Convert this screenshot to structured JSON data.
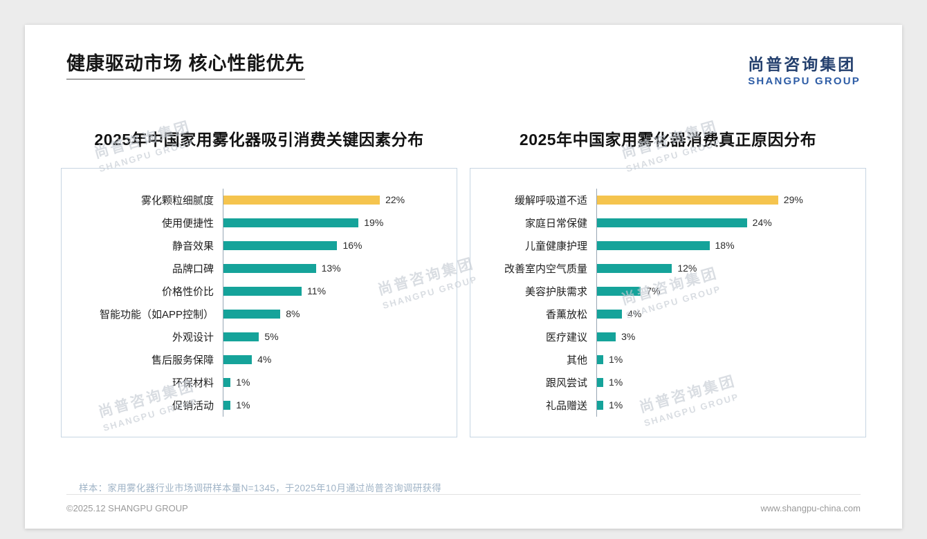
{
  "page": {
    "title": "健康驱动市场 核心性能优先",
    "logo": {
      "cn": "尚普咨询集团",
      "en": "SHANGPU GROUP"
    },
    "watermark": {
      "cn": "尚普咨询集团",
      "en": "SHANGPU GROUP"
    },
    "sample_note": "样本：家用雾化器行业市场调研样本量N=1345，于2025年10月通过尚普咨询调研获得",
    "footer": {
      "left": "©2025.12 SHANGPU GROUP",
      "right": "www.shangpu-china.com"
    }
  },
  "colors": {
    "accent_teal": "#15A39A",
    "accent_yellow": "#F5C44E",
    "logo_navy": "#24406E",
    "logo_blue": "#2E5DA6",
    "chart_border": "#C7D5E2",
    "note_text": "#9FB3C6"
  },
  "chart_data": [
    {
      "type": "bar",
      "orientation": "horizontal",
      "title": "2025年中国家用雾化器吸引消费关键因素分布",
      "categories": [
        "雾化颗粒细腻度",
        "使用便捷性",
        "静音效果",
        "品牌口碑",
        "价格性价比",
        "智能功能（如APP控制）",
        "外观设计",
        "售后服务保障",
        "环保材料",
        "促销活动"
      ],
      "values": [
        22,
        19,
        16,
        13,
        11,
        8,
        5,
        4,
        1,
        1
      ],
      "unit": "%",
      "highlight_index": 0,
      "highlight_color": "#F5C44E",
      "bar_color": "#15A39A",
      "xlim": [
        0,
        31
      ],
      "value_labels": true,
      "grid": false,
      "legend": false
    },
    {
      "type": "bar",
      "orientation": "horizontal",
      "title": "2025年中国家用雾化器消费真正原因分布",
      "categories": [
        "缓解呼吸道不适",
        "家庭日常保健",
        "儿童健康护理",
        "改善室内空气质量",
        "美容护肤需求",
        "香薰放松",
        "医疗建议",
        "其他",
        "跟风尝试",
        "礼品赠送"
      ],
      "values": [
        29,
        24,
        18,
        12,
        7,
        4,
        3,
        1,
        1,
        1
      ],
      "unit": "%",
      "highlight_index": 0,
      "highlight_color": "#F5C44E",
      "bar_color": "#15A39A",
      "xlim": [
        0,
        41
      ],
      "value_labels": true,
      "grid": false,
      "legend": false
    }
  ]
}
